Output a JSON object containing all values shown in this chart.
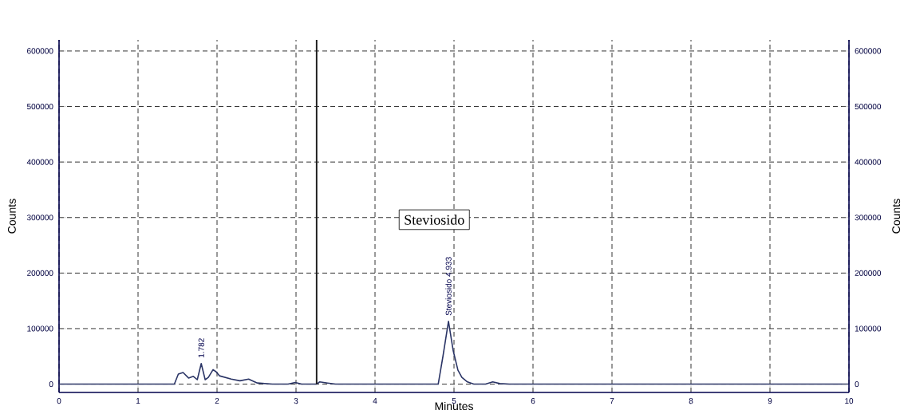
{
  "chart_data": {
    "type": "line",
    "xlabel": "Minutes",
    "ylabel": "Counts",
    "y2label": "Counts",
    "series": [
      {
        "color": "#2b3566",
        "x": [
          0,
          1.2,
          1.46,
          1.51,
          1.57,
          1.64,
          1.7,
          1.75,
          1.8,
          1.85,
          1.89,
          1.95,
          1.99,
          2.03,
          2.18,
          2.29,
          2.4,
          2.51,
          2.7,
          2.9,
          2.99,
          3.07,
          3.26,
          3.3,
          3.4,
          3.5,
          4.0,
          4.8,
          4.86,
          4.93,
          4.99,
          5.05,
          5.1,
          5.17,
          5.25,
          5.4,
          5.49,
          5.58,
          5.7,
          7.0,
          8.5,
          10
        ],
        "values": [
          0,
          0,
          0,
          18000,
          21000,
          11000,
          14000,
          8000,
          37000,
          8000,
          12000,
          26000,
          22000,
          15000,
          9000,
          6000,
          9000,
          2000,
          0,
          0,
          3000,
          0,
          0,
          4000,
          2000,
          0,
          0,
          0,
          50000,
          113000,
          60000,
          25000,
          12000,
          4000,
          0,
          0,
          4000,
          1000,
          0,
          0,
          0,
          0
        ]
      }
    ],
    "xlim": [
      0,
      10
    ],
    "xticks": [
      0,
      1,
      2,
      3,
      4,
      5,
      6,
      7,
      8,
      9,
      10
    ],
    "ylim": [
      -15000,
      620000
    ],
    "yticks": [
      0,
      100000,
      200000,
      300000,
      400000,
      500000,
      600000
    ],
    "y2lim": [
      -15000,
      620000
    ],
    "y2ticks": [
      0,
      100000,
      200000,
      300000,
      400000,
      500000,
      600000
    ],
    "grid": true,
    "line_style": "solid",
    "marker": "none",
    "ref_lines": [
      {
        "axis": "x",
        "value": 3.26,
        "color": "#1a1a1a"
      }
    ],
    "annotations": [
      "Steviosido",
      {
        "text": "1.782",
        "x": 1.8,
        "y": 37000
      },
      {
        "text": "Steviosido 4.933",
        "x": 4.93,
        "y": 113000
      }
    ]
  }
}
